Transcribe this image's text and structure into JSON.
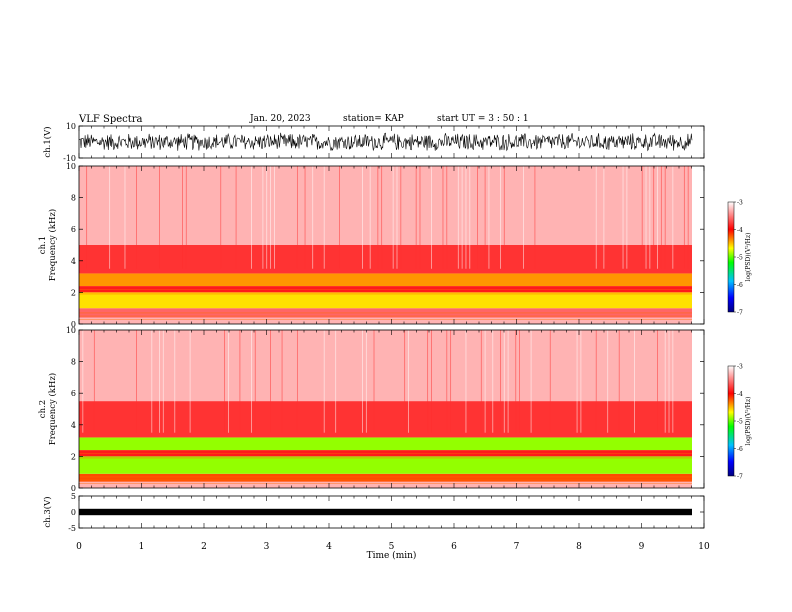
{
  "header": {
    "title": "VLF Spectra",
    "date": "Jan. 20, 2023",
    "station": "station= KAP",
    "start": "start  UT  =   3  : 50 : 1"
  },
  "chart_data": [
    {
      "type": "line",
      "panel": "ch1-waveform",
      "ylabel": "ch.1(V)",
      "ylim": [
        -10,
        10
      ],
      "yticks": [
        "10",
        "-10"
      ],
      "xlim": [
        0,
        10
      ],
      "series": [
        {
          "values_description_range": [
            -6,
            6
          ]
        }
      ]
    },
    {
      "type": "heatmap",
      "panel": "ch1-spectrogram",
      "ylabel": "ch.1\nFrequency (kHz)",
      "ylim": [
        0,
        10
      ],
      "yticks": [
        "0",
        "2",
        "4",
        "6",
        "8",
        "10"
      ],
      "xlim": [
        0,
        9.8
      ],
      "colorbar": {
        "label": "log(PSD)(V²/Hz)",
        "range": [
          -7,
          -3
        ],
        "ticks": [
          "-3",
          "-4",
          "-5",
          "-6",
          "-7"
        ]
      },
      "bands": [
        {
          "from_khz": 0,
          "to_khz": 0.4,
          "level": -3.3
        },
        {
          "from_khz": 0.4,
          "to_khz": 1.0,
          "level": -3.6
        },
        {
          "from_khz": 1.0,
          "to_khz": 2.0,
          "level": -4.6
        },
        {
          "from_khz": 2.0,
          "to_khz": 2.4,
          "level": -3.9
        },
        {
          "from_khz": 2.4,
          "to_khz": 3.2,
          "level": -4.4
        },
        {
          "from_khz": 3.2,
          "to_khz": 5.0,
          "level": -3.8
        },
        {
          "from_khz": 5.0,
          "to_khz": 10.0,
          "level": -3.3
        }
      ]
    },
    {
      "type": "heatmap",
      "panel": "ch2-spectrogram",
      "ylabel": "ch.2\nFrequency (kHz)",
      "ylim": [
        0,
        10
      ],
      "yticks": [
        "0",
        "2",
        "4",
        "6",
        "8",
        "10"
      ],
      "xlim": [
        0,
        9.8
      ],
      "colorbar": {
        "label": "log(PSD)(V²/Hz)",
        "range": [
          -7,
          -3
        ],
        "ticks": [
          "-3",
          "-4",
          "-5",
          "-6",
          "-7"
        ]
      },
      "bands": [
        {
          "from_khz": 0,
          "to_khz": 0.4,
          "level": -3.3
        },
        {
          "from_khz": 0.4,
          "to_khz": 0.9,
          "level": -4.2
        },
        {
          "from_khz": 0.9,
          "to_khz": 2.0,
          "level": -4.9
        },
        {
          "from_khz": 2.0,
          "to_khz": 2.4,
          "level": -3.9
        },
        {
          "from_khz": 2.4,
          "to_khz": 3.2,
          "level": -4.9
        },
        {
          "from_khz": 3.2,
          "to_khz": 5.5,
          "level": -3.8
        },
        {
          "from_khz": 5.5,
          "to_khz": 10.0,
          "level": -3.3
        }
      ]
    },
    {
      "type": "line",
      "panel": "ch3-waveform",
      "ylabel": "ch.3(V)",
      "ylim": [
        -5,
        5
      ],
      "yticks": [
        "5",
        "0",
        "-5"
      ],
      "xlim": [
        0,
        10
      ],
      "series": [
        {
          "values_description_range": [
            -1,
            1
          ]
        }
      ]
    }
  ],
  "xaxis": {
    "label": "Time (min)",
    "range": [
      0,
      10
    ],
    "ticks": [
      "0",
      "1",
      "2",
      "3",
      "4",
      "5",
      "6",
      "7",
      "8",
      "9",
      "10"
    ]
  },
  "colors": {
    "background": "#ffffff",
    "trace": "#000000"
  }
}
